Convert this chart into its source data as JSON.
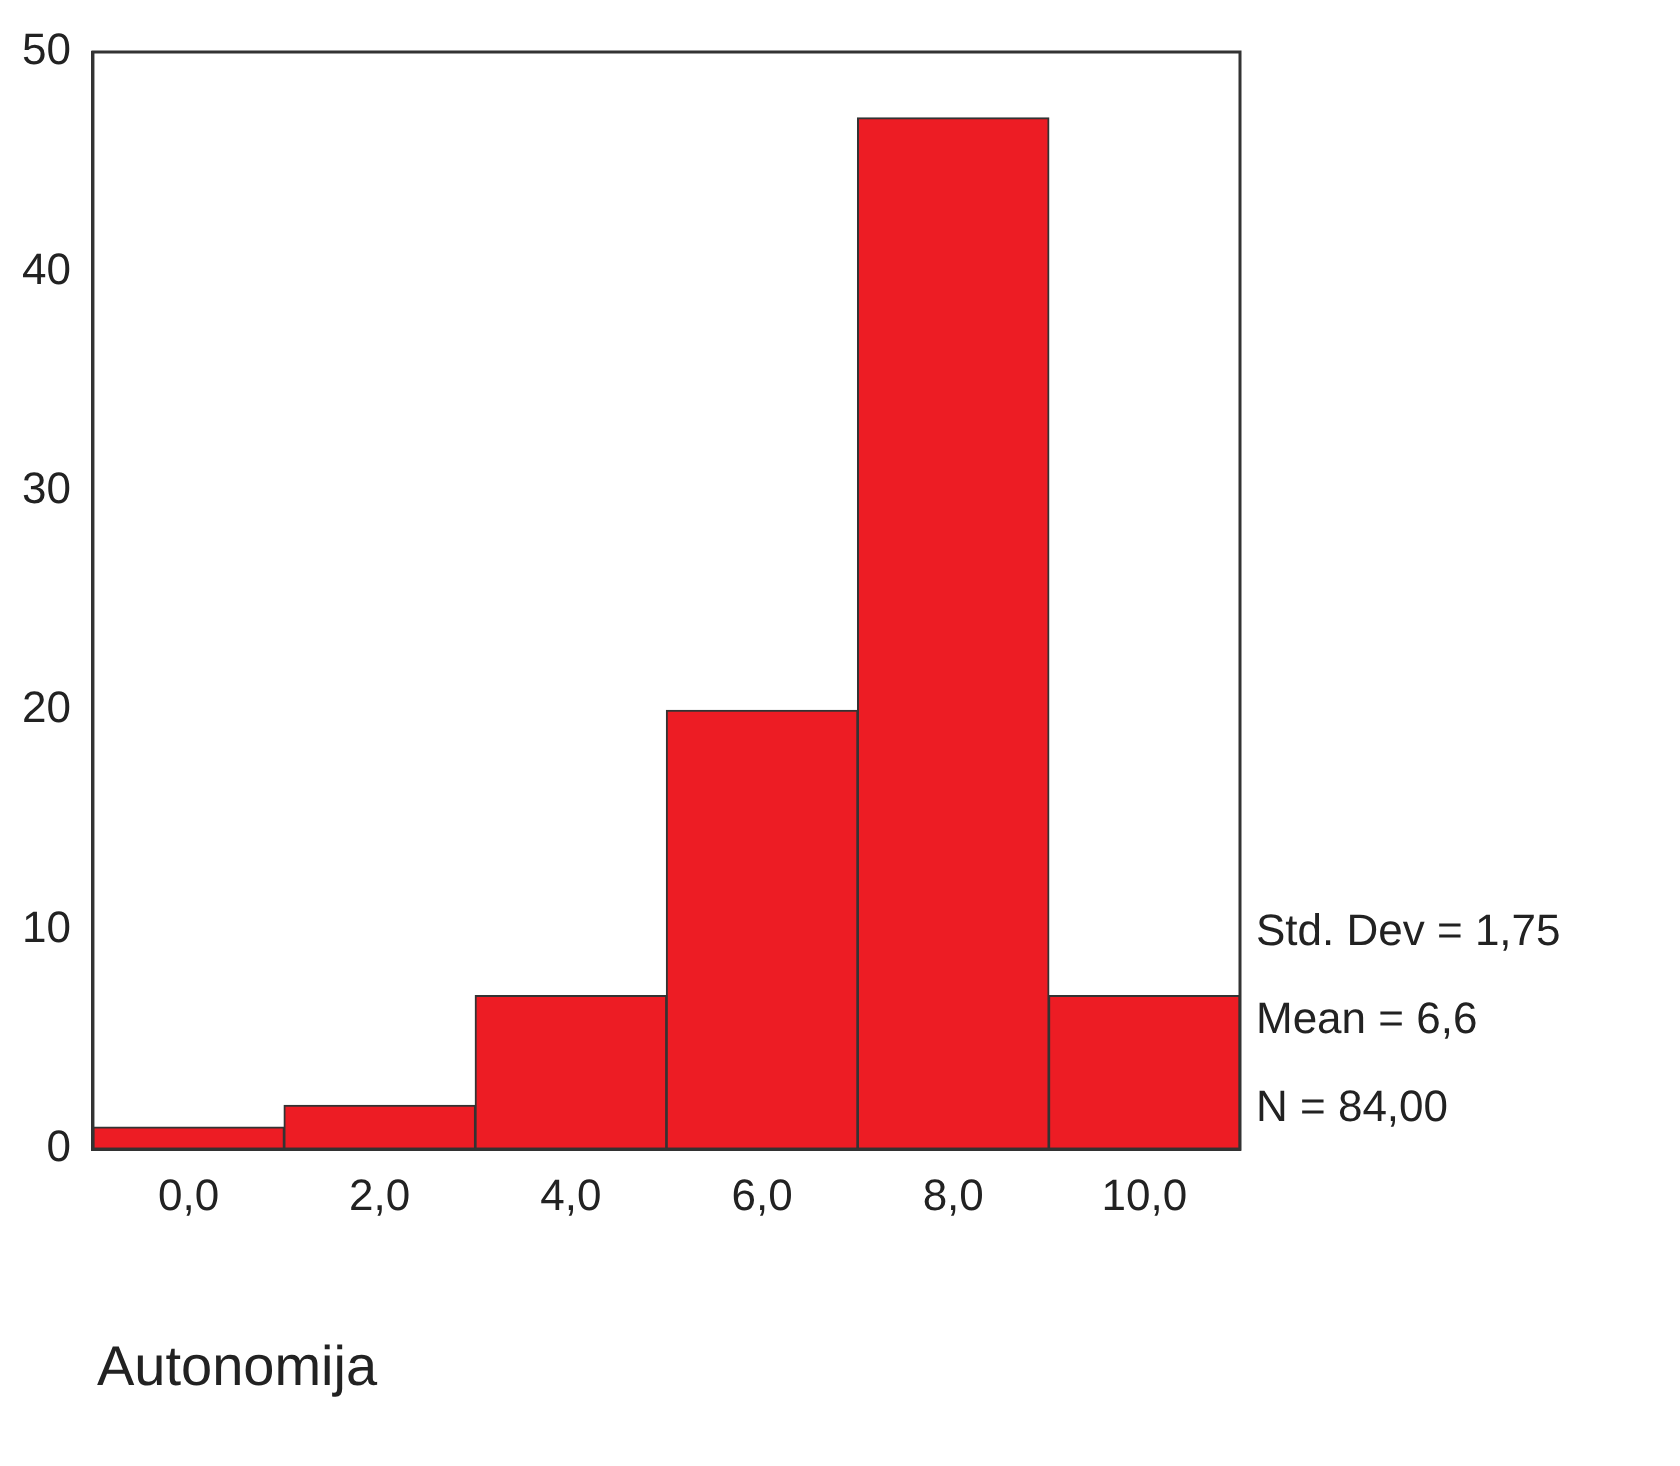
{
  "chart_data": {
    "type": "histogram",
    "xlabel": "Autonomija",
    "bins": [
      -1,
      1,
      3,
      5,
      7,
      9,
      11
    ],
    "values": [
      1,
      2,
      7,
      20,
      47,
      7
    ],
    "color": "#ed1c24",
    "xlim": [
      -1,
      11
    ],
    "xticks": [
      {
        "value": 0,
        "label": "0,0"
      },
      {
        "value": 2,
        "label": "2,0"
      },
      {
        "value": 4,
        "label": "4,0"
      },
      {
        "value": 6,
        "label": "6,0"
      },
      {
        "value": 8,
        "label": "8,0"
      },
      {
        "value": 10,
        "label": "10,0"
      }
    ],
    "ylim": [
      0,
      50
    ],
    "yticks": [
      0,
      10,
      20,
      30,
      40,
      50
    ],
    "grid": false,
    "legend": false,
    "annotations": [
      "Std. Dev = 1,75",
      "Mean = 6,6",
      "N = 84,00"
    ]
  }
}
